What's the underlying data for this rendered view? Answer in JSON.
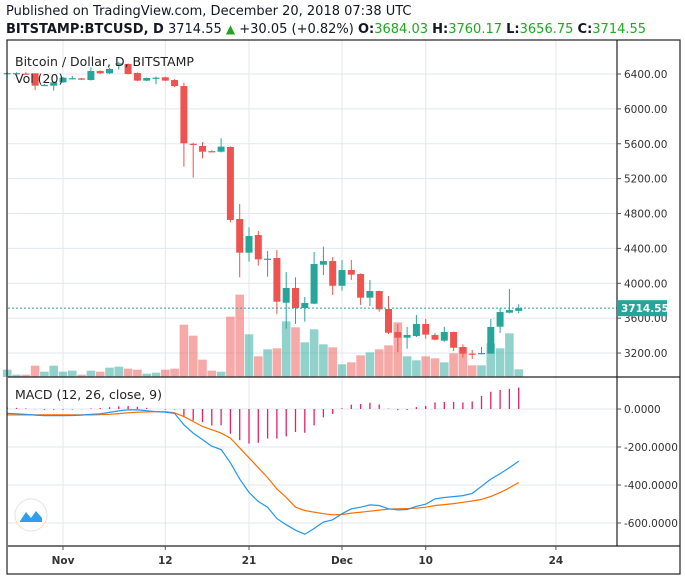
{
  "header": {
    "published": "Published on TradingView.com, December 20, 2018 07:38 UTC",
    "symbol": "BITSTAMP:BTCUSD, D",
    "last": "3714.55",
    "change": "+30.05 (+0.82%)",
    "o_label": "O:",
    "o": "3684.03",
    "h_label": "H:",
    "h": "3760.17",
    "l_label": "L:",
    "l": "3656.75",
    "c_label": "C:",
    "c": "3714.55"
  },
  "colors": {
    "up": "#26a69a",
    "down": "#ef5350",
    "macd": "#2196f3",
    "signal": "#ff6d00",
    "histogram": "#e91e63",
    "grid": "#e1e8ef"
  },
  "chart_data": [
    {
      "type": "candlestick",
      "title": "Bitcoin / Dollar, D, BITSTAMP",
      "volume_label": "Vol (20)",
      "last_price_label": "3714.55",
      "y_ticks": [
        "6400.00",
        "6000.00",
        "5600.00",
        "5200.00",
        "4800.00",
        "4400.00",
        "4000.00",
        "3600.00",
        "3200.00"
      ],
      "x_ticks": [
        {
          "label": "Nov",
          "date": "2018-11-01"
        },
        {
          "label": "12",
          "date": "2018-11-12"
        },
        {
          "label": "21",
          "date": "2018-11-21"
        },
        {
          "label": "Dec",
          "date": "2018-12-01"
        },
        {
          "label": "10",
          "date": "2018-12-10"
        },
        {
          "label": "24",
          "date": "2018-12-24"
        }
      ],
      "ylim": [
        3000,
        6600
      ],
      "grid": true,
      "dates": [
        "2018-10-26",
        "2018-10-27",
        "2018-10-28",
        "2018-10-29",
        "2018-10-30",
        "2018-10-31",
        "2018-11-01",
        "2018-11-02",
        "2018-11-03",
        "2018-11-04",
        "2018-11-05",
        "2018-11-06",
        "2018-11-07",
        "2018-11-08",
        "2018-11-09",
        "2018-11-10",
        "2018-11-11",
        "2018-11-12",
        "2018-11-13",
        "2018-11-14",
        "2018-11-15",
        "2018-11-16",
        "2018-11-17",
        "2018-11-18",
        "2018-11-19",
        "2018-11-20",
        "2018-11-21",
        "2018-11-22",
        "2018-11-23",
        "2018-11-24",
        "2018-11-25",
        "2018-11-26",
        "2018-11-27",
        "2018-11-28",
        "2018-11-29",
        "2018-11-30",
        "2018-12-01",
        "2018-12-02",
        "2018-12-03",
        "2018-12-04",
        "2018-12-05",
        "2018-12-06",
        "2018-12-07",
        "2018-12-08",
        "2018-12-09",
        "2018-12-10",
        "2018-12-11",
        "2018-12-12",
        "2018-12-13",
        "2018-12-14",
        "2018-12-15",
        "2018-12-16",
        "2018-12-17",
        "2018-12-18",
        "2018-12-19",
        "2018-12-20"
      ],
      "ohlc": [
        [
          6405,
          6420,
          6395,
          6410
        ],
        [
          6405,
          6418,
          6398,
          6410
        ],
        [
          6405,
          6420,
          6398,
          6400
        ],
        [
          6408,
          6410,
          6217,
          6266
        ],
        [
          6270,
          6285,
          6262,
          6275
        ],
        [
          6266,
          6310,
          6209,
          6304
        ],
        [
          6304,
          6365,
          6298,
          6358
        ],
        [
          6350,
          6380,
          6340,
          6352
        ],
        [
          6350,
          6355,
          6330,
          6335
        ],
        [
          6331,
          6477,
          6325,
          6434
        ],
        [
          6434,
          6440,
          6400,
          6408
        ],
        [
          6408,
          6470,
          6400,
          6458
        ],
        [
          6522,
          6540,
          6450,
          6522
        ],
        [
          6515,
          6520,
          6395,
          6400
        ],
        [
          6412,
          6418,
          6318,
          6324
        ],
        [
          6324,
          6360,
          6318,
          6354
        ],
        [
          6352,
          6370,
          6282,
          6358
        ],
        [
          6362,
          6368,
          6318,
          6324
        ],
        [
          6331,
          6340,
          6250,
          6262
        ],
        [
          6262,
          6300,
          5337,
          5605
        ],
        [
          5600,
          5610,
          5211,
          5594
        ],
        [
          5574,
          5620,
          5433,
          5509
        ],
        [
          5515,
          5525,
          5505,
          5513
        ],
        [
          5509,
          5662,
          5500,
          5567
        ],
        [
          5563,
          5570,
          4700,
          4726
        ],
        [
          4737,
          4909,
          4068,
          4351
        ],
        [
          4351,
          4641,
          4248,
          4542
        ],
        [
          4553,
          4600,
          4202,
          4274
        ],
        [
          4282,
          4370,
          4076,
          4282
        ],
        [
          4290,
          4382,
          3648,
          3789
        ],
        [
          3777,
          4128,
          3480,
          3946
        ],
        [
          3946,
          4068,
          3533,
          3716
        ],
        [
          3716,
          3843,
          3560,
          3774
        ],
        [
          3766,
          4359,
          3760,
          4221
        ],
        [
          4213,
          4420,
          4095,
          4255
        ],
        [
          4255,
          4301,
          3865,
          3972
        ],
        [
          3972,
          4267,
          3915,
          4152
        ],
        [
          4152,
          4267,
          4038,
          4099
        ],
        [
          4106,
          4114,
          3751,
          3835
        ],
        [
          3835,
          4038,
          3740,
          3911
        ],
        [
          3911,
          3915,
          3674,
          3701
        ],
        [
          3705,
          3854,
          3418,
          3433
        ],
        [
          3441,
          3533,
          3211,
          3376
        ],
        [
          3376,
          3499,
          3250,
          3407
        ],
        [
          3395,
          3636,
          3384,
          3533
        ],
        [
          3533,
          3591,
          3365,
          3411
        ],
        [
          3407,
          3430,
          3345,
          3353
        ],
        [
          3342,
          3499,
          3330,
          3441
        ],
        [
          3441,
          3445,
          3223,
          3261
        ],
        [
          3269,
          3300,
          3147,
          3193
        ],
        [
          3193,
          3235,
          3132,
          3190
        ],
        [
          3190,
          3269,
          3185,
          3200
        ],
        [
          3193,
          3590,
          3190,
          3499
        ],
        [
          3502,
          3715,
          3430,
          3670
        ],
        [
          3663,
          3934,
          3655,
          3693
        ],
        [
          3684.03,
          3760.17,
          3656.75,
          3714.55
        ]
      ],
      "volume_relative": [
        22,
        7,
        7,
        34,
        16,
        34,
        16,
        19,
        7,
        19,
        16,
        28,
        31,
        25,
        22,
        10,
        13,
        22,
        25,
        157,
        124,
        52,
        19,
        16,
        181,
        247,
        128,
        62,
        83,
        86,
        167,
        149,
        104,
        143,
        98,
        89,
        38,
        44,
        65,
        74,
        83,
        95,
        164,
        62,
        50,
        62,
        56,
        44,
        71,
        89,
        35,
        35,
        101,
        86,
        131,
        23
      ]
    },
    {
      "type": "line",
      "title": "MACD (12, 26, close, 9)",
      "y_ticks": [
        "0.0000",
        "-200.0000",
        "-400.0000",
        "-600.0000"
      ],
      "ylim": [
        -720,
        150
      ],
      "grid": true,
      "series": [
        {
          "key": "macd",
          "values": [
            -23,
            -25,
            -28,
            -32,
            -35,
            -35,
            -35,
            -34,
            -32,
            -28,
            -25,
            -18,
            -10,
            -4,
            -5,
            -9,
            -14,
            -17,
            -23,
            -83,
            -127,
            -161,
            -196,
            -213,
            -283,
            -369,
            -439,
            -487,
            -517,
            -577,
            -609,
            -638,
            -659,
            -629,
            -595,
            -583,
            -551,
            -525,
            -517,
            -505,
            -508,
            -525,
            -531,
            -529,
            -512,
            -501,
            -473,
            -466,
            -461,
            -456,
            -444,
            -407,
            -369,
            -340,
            -309,
            -274
          ]
        },
        {
          "key": "signal",
          "values": [
            -31,
            -31,
            -31,
            -31,
            -31,
            -31,
            -31,
            -31,
            -31,
            -31,
            -30,
            -28,
            -24,
            -20,
            -17,
            -15,
            -14,
            -14,
            -20,
            -40,
            -66,
            -92,
            -109,
            -127,
            -153,
            -205,
            -257,
            -309,
            -361,
            -421,
            -465,
            -517,
            -534,
            -543,
            -551,
            -557,
            -555,
            -548,
            -543,
            -538,
            -532,
            -527,
            -525,
            -524,
            -522,
            -517,
            -508,
            -503,
            -498,
            -491,
            -484,
            -476,
            -460,
            -440,
            -415,
            -387
          ]
        }
      ]
    }
  ]
}
